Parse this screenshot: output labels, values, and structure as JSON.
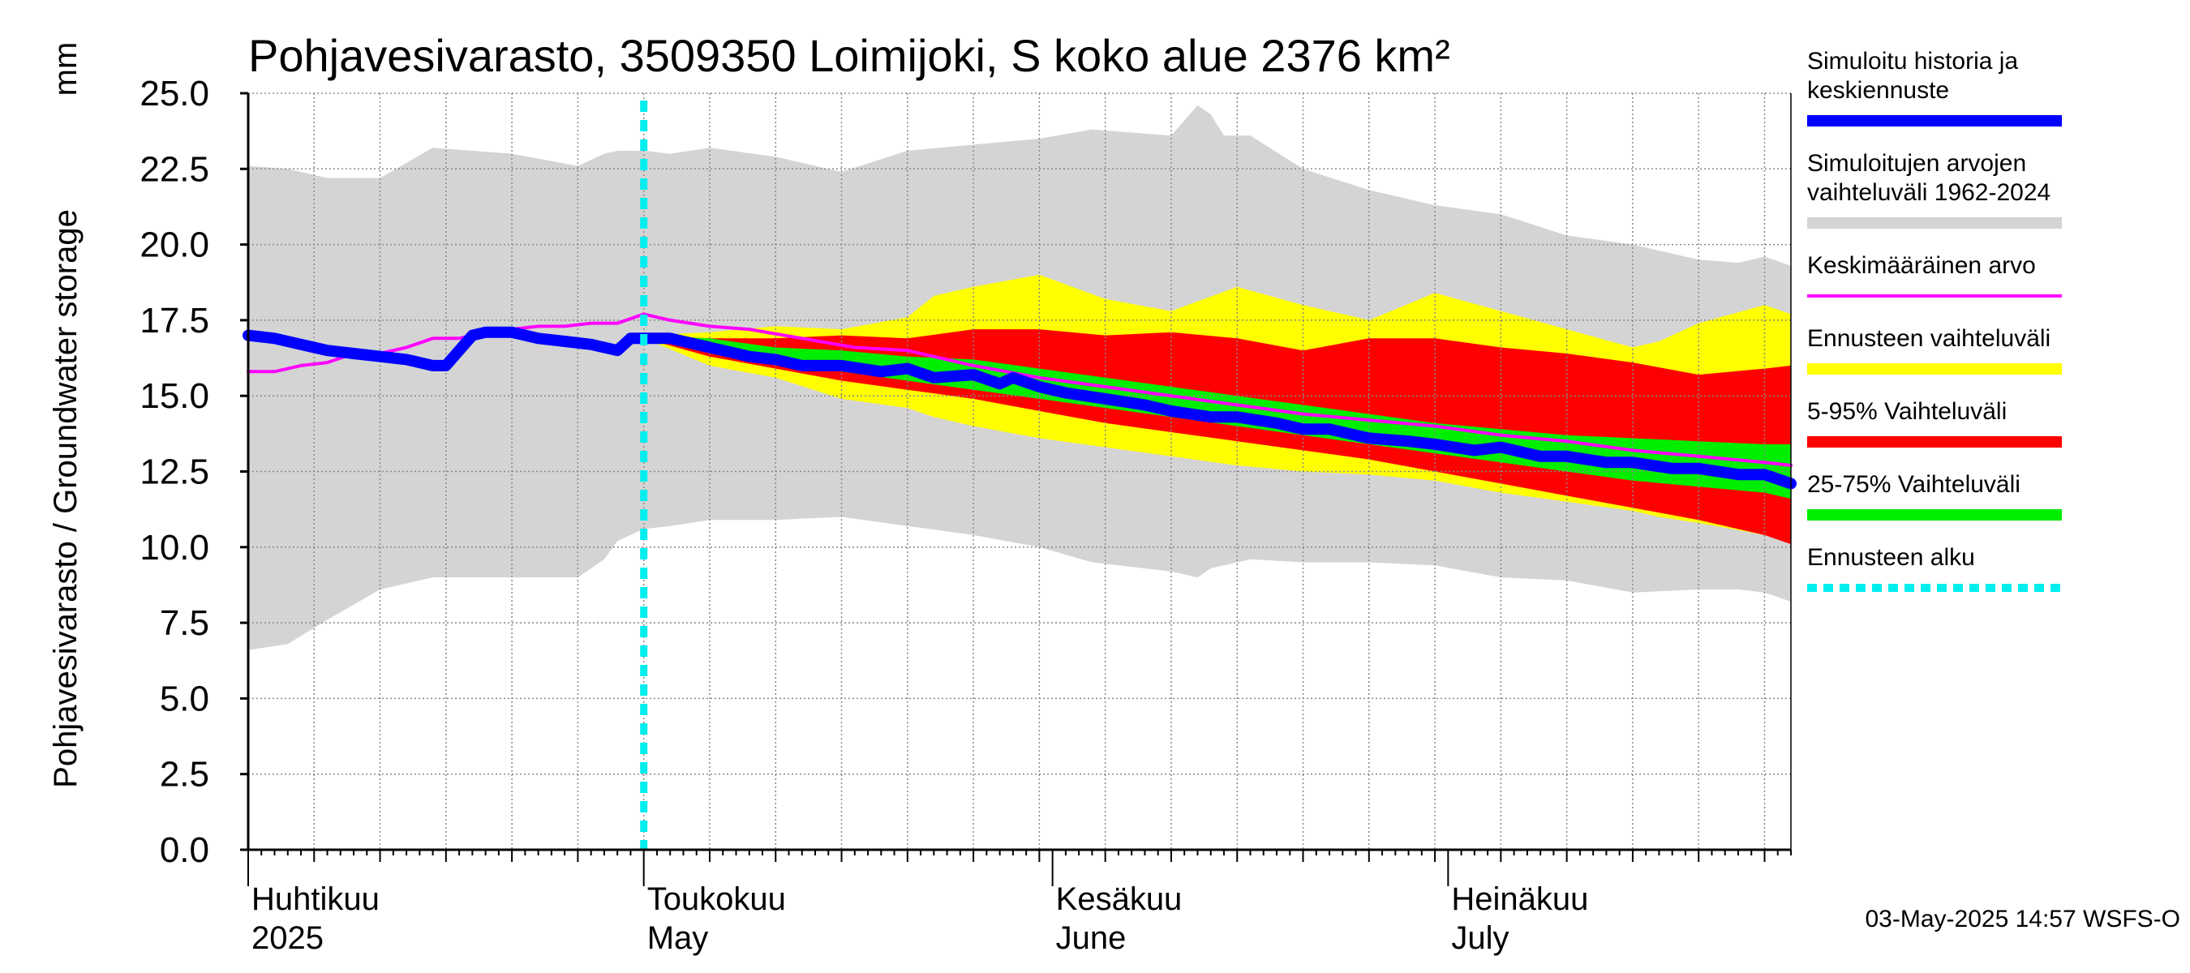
{
  "chart_data": {
    "type": "area",
    "title": "Pohjavesivarasto, 3509350 Loimijoki, S koko alue 2376 km²",
    "ylabel": "Pohjavesivarasto / Groundwater storage",
    "yunit": "mm",
    "ylim": [
      0,
      25
    ],
    "yticks": [
      "0.0",
      "2.5",
      "5.0",
      "7.5",
      "10.0",
      "12.5",
      "15.0",
      "17.5",
      "20.0",
      "22.5",
      "25.0"
    ],
    "xlim_days": [
      0,
      117
    ],
    "grid": true,
    "month_labels": [
      {
        "day": 0,
        "fi": "Huhtikuu",
        "en": "2025"
      },
      {
        "day": 30,
        "fi": "Toukokuu",
        "en": "May"
      },
      {
        "day": 61,
        "fi": "Kesäkuu",
        "en": "June"
      },
      {
        "day": 91,
        "fi": "Heinäkuu",
        "en": "July"
      }
    ],
    "forecast_start_day": 30,
    "series": [
      {
        "name": "Simuloitujen arvojen vaihteluväli 1962-2024",
        "kind": "band",
        "color": "#d4d4d4",
        "x": [
          0,
          3,
          6,
          10,
          14,
          20,
          25,
          27,
          28,
          30,
          32,
          35,
          40,
          45,
          50,
          55,
          60,
          64,
          70,
          72,
          73,
          74,
          76,
          80,
          85,
          90,
          95,
          100,
          105,
          110,
          113,
          115,
          117
        ],
        "lower": [
          6.6,
          6.8,
          7.6,
          8.6,
          9.0,
          9.0,
          9.0,
          9.6,
          10.2,
          10.6,
          10.7,
          10.9,
          10.9,
          11.0,
          10.7,
          10.4,
          10.0,
          9.5,
          9.2,
          9.0,
          9.3,
          9.4,
          9.6,
          9.5,
          9.5,
          9.4,
          9.0,
          8.9,
          8.5,
          8.6,
          8.6,
          8.5,
          8.2
        ],
        "upper": [
          22.6,
          22.5,
          22.2,
          22.2,
          23.2,
          23.0,
          22.6,
          23.0,
          23.1,
          23.1,
          23.0,
          23.2,
          22.9,
          22.4,
          23.1,
          23.3,
          23.5,
          23.8,
          23.6,
          24.6,
          24.3,
          23.6,
          23.6,
          22.5,
          21.8,
          21.3,
          21.0,
          20.3,
          20.0,
          19.5,
          19.4,
          19.6,
          19.3
        ]
      },
      {
        "name": "Ennusteen vaihteluväli",
        "kind": "band",
        "color": "#ffff00",
        "x": [
          30,
          35,
          40,
          45,
          50,
          52,
          55,
          60,
          65,
          70,
          75,
          80,
          85,
          90,
          95,
          100,
          105,
          107,
          110,
          115,
          117
        ],
        "lower": [
          16.9,
          16.0,
          15.6,
          14.9,
          14.6,
          14.3,
          14.0,
          13.6,
          13.3,
          13.0,
          12.7,
          12.5,
          12.4,
          12.2,
          11.8,
          11.5,
          11.2,
          11.0,
          10.8,
          10.4,
          10.2
        ],
        "upper": [
          17.0,
          17.1,
          17.3,
          17.2,
          17.6,
          18.3,
          18.6,
          19.0,
          18.2,
          17.8,
          18.6,
          18.0,
          17.5,
          18.4,
          17.8,
          17.2,
          16.6,
          16.8,
          17.4,
          18.0,
          17.7
        ]
      },
      {
        "name": "5-95% Vaihteluväli",
        "kind": "band",
        "color": "#ff0000",
        "x": [
          30,
          35,
          40,
          45,
          50,
          55,
          60,
          65,
          70,
          75,
          80,
          85,
          90,
          95,
          100,
          105,
          110,
          115,
          117
        ],
        "lower": [
          16.9,
          16.3,
          15.9,
          15.5,
          15.2,
          14.9,
          14.5,
          14.1,
          13.8,
          13.5,
          13.2,
          12.9,
          12.5,
          12.1,
          11.7,
          11.3,
          10.9,
          10.4,
          10.1
        ],
        "upper": [
          17.0,
          16.9,
          16.9,
          17.0,
          16.9,
          17.2,
          17.2,
          17.0,
          17.1,
          16.9,
          16.5,
          16.9,
          16.9,
          16.6,
          16.4,
          16.1,
          15.7,
          15.9,
          16.0
        ]
      },
      {
        "name": "25-75% Vaihteluväli",
        "kind": "band",
        "color": "#00ee00",
        "x": [
          30,
          35,
          40,
          45,
          50,
          55,
          60,
          65,
          70,
          75,
          80,
          85,
          90,
          95,
          100,
          105,
          110,
          115,
          117
        ],
        "lower": [
          16.9,
          16.5,
          16.1,
          15.8,
          15.5,
          15.2,
          14.9,
          14.6,
          14.3,
          14.0,
          13.7,
          13.4,
          13.1,
          12.8,
          12.5,
          12.2,
          12.0,
          11.8,
          11.6
        ],
        "upper": [
          17.0,
          16.9,
          16.6,
          16.5,
          16.3,
          16.2,
          15.9,
          15.6,
          15.3,
          15.0,
          14.7,
          14.4,
          14.1,
          13.9,
          13.7,
          13.6,
          13.5,
          13.4,
          13.4
        ]
      },
      {
        "name": "Keskimääräinen arvo",
        "kind": "line",
        "color": "#ff00ff",
        "width": 4,
        "x": [
          0,
          2,
          4,
          6,
          8,
          10,
          12,
          14,
          16,
          18,
          20,
          22,
          24,
          26,
          28,
          30,
          32,
          35,
          38,
          42,
          46,
          50,
          55,
          60,
          65,
          70,
          75,
          80,
          85,
          90,
          95,
          100,
          105,
          110,
          115,
          117
        ],
        "y": [
          15.8,
          15.8,
          16.0,
          16.1,
          16.4,
          16.4,
          16.6,
          16.9,
          16.9,
          17.1,
          17.2,
          17.3,
          17.3,
          17.4,
          17.4,
          17.7,
          17.5,
          17.3,
          17.2,
          16.9,
          16.6,
          16.5,
          16.0,
          15.6,
          15.3,
          15.0,
          14.7,
          14.4,
          14.2,
          14.0,
          13.7,
          13.5,
          13.2,
          13.0,
          12.8,
          12.7
        ]
      },
      {
        "name": "Simuloitu historia ja keskiennuste",
        "kind": "line",
        "color": "#0000ff",
        "width": 14,
        "x": [
          0,
          2,
          4,
          6,
          8,
          10,
          12,
          14,
          15,
          16,
          17,
          18,
          20,
          22,
          24,
          26,
          28,
          29,
          30,
          32,
          35,
          38,
          40,
          42,
          45,
          48,
          50,
          52,
          55,
          57,
          58,
          60,
          62,
          65,
          68,
          70,
          73,
          75,
          78,
          80,
          82,
          85,
          88,
          90,
          93,
          95,
          98,
          100,
          103,
          105,
          108,
          110,
          113,
          115,
          117
        ],
        "y": [
          17.0,
          16.9,
          16.7,
          16.5,
          16.4,
          16.3,
          16.2,
          16.0,
          16.0,
          16.5,
          17.0,
          17.1,
          17.1,
          16.9,
          16.8,
          16.7,
          16.5,
          16.9,
          16.9,
          16.9,
          16.6,
          16.3,
          16.2,
          16.0,
          16.0,
          15.8,
          15.9,
          15.6,
          15.7,
          15.4,
          15.6,
          15.3,
          15.1,
          14.9,
          14.7,
          14.5,
          14.3,
          14.3,
          14.1,
          13.9,
          13.9,
          13.6,
          13.5,
          13.4,
          13.2,
          13.3,
          13.0,
          13.0,
          12.8,
          12.8,
          12.6,
          12.6,
          12.4,
          12.4,
          12.1
        ]
      }
    ],
    "legend": [
      {
        "lines": [
          "Simuloitu historia ja",
          "keskiennuste"
        ],
        "color": "#0000ff",
        "style": "solid",
        "width": 14
      },
      {
        "lines": [
          "Simuloitujen arvojen",
          "vaihteluväli 1962-2024"
        ],
        "color": "#d4d4d4",
        "style": "solid",
        "width": 14
      },
      {
        "lines": [
          "Keskimääräinen arvo"
        ],
        "color": "#ff00ff",
        "style": "solid",
        "width": 4
      },
      {
        "lines": [
          "Ennusteen vaihteluväli"
        ],
        "color": "#ffff00",
        "style": "solid",
        "width": 14
      },
      {
        "lines": [
          "5-95% Vaihteluväli"
        ],
        "color": "#ff0000",
        "style": "solid",
        "width": 14
      },
      {
        "lines": [
          "25-75% Vaihteluväli"
        ],
        "color": "#00ee00",
        "style": "solid",
        "width": 14
      },
      {
        "lines": [
          "Ennusteen alku"
        ],
        "color": "#00eeee",
        "style": "dotted",
        "width": 10
      }
    ],
    "footer": "03-May-2025 14:57 WSFS-O"
  }
}
